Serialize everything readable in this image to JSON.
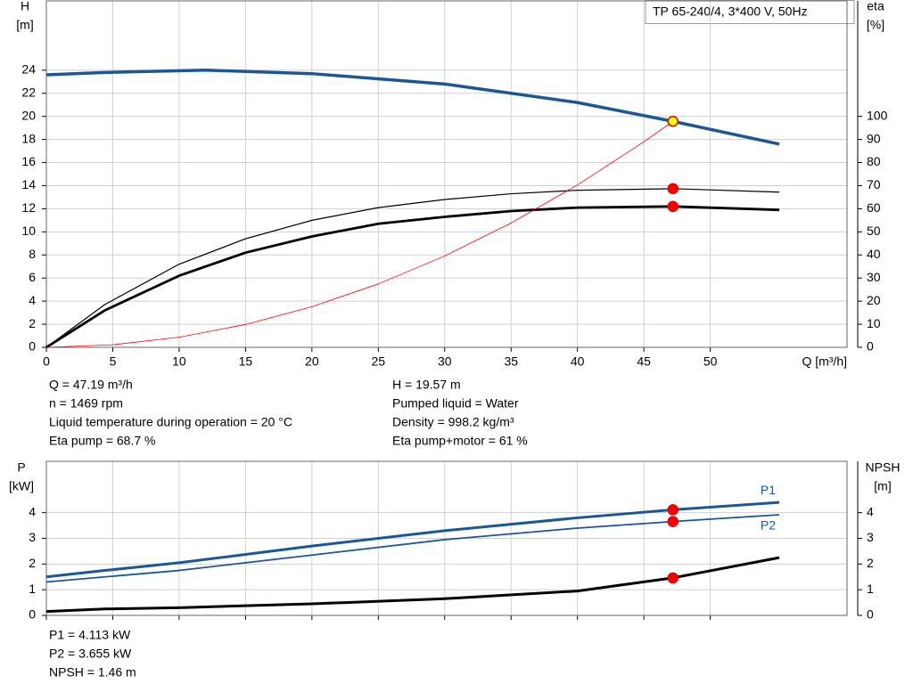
{
  "chart_data": [
    {
      "type": "line",
      "annotation": "TP 65-240/4, 3*400 V, 50Hz",
      "y_label": "H",
      "y_unit": "[m]",
      "y2_label": "eta",
      "y2_unit": "[%]",
      "x_label": "Q [m³/h]",
      "xlim": [
        0,
        60.3
      ],
      "xticks": [
        0,
        5,
        10,
        15,
        20,
        25,
        30,
        35,
        40,
        45,
        50
      ],
      "ylim": [
        0,
        30
      ],
      "yticks": [
        0,
        2,
        4,
        6,
        8,
        10,
        12,
        14,
        16,
        18,
        20,
        22,
        24
      ],
      "y2lim": [
        0,
        150
      ],
      "y2ticks": [
        0,
        10,
        20,
        30,
        40,
        50,
        60,
        70,
        80,
        90,
        100
      ],
      "grid": true,
      "series": [
        {
          "color": "#1b5797",
          "x": [
            0,
            4.4,
            12,
            20,
            30,
            40,
            47.19,
            55.2
          ],
          "values": [
            23.6,
            23.8,
            24.0,
            23.7,
            22.8,
            21.2,
            19.57,
            17.6
          ]
        },
        {
          "color": "#000000",
          "axis": "y2",
          "x": [
            0,
            4.4,
            10,
            15,
            20,
            25,
            30,
            35,
            40,
            47.19,
            55.2
          ],
          "values": [
            0,
            18.5,
            36,
            47,
            55,
            60.5,
            64,
            66.5,
            68,
            68.7,
            67.2
          ]
        },
        {
          "color": "#000000",
          "axis": "y2",
          "x": [
            0,
            4.4,
            10,
            15,
            20,
            25,
            30,
            35,
            40,
            47.19,
            55.2
          ],
          "values": [
            0,
            16,
            31,
            41,
            48,
            53.5,
            56.5,
            59,
            60.5,
            61,
            59.5
          ]
        },
        {
          "color": "#ff0000",
          "x": [
            0,
            5,
            10,
            15,
            20,
            25,
            30,
            35,
            40,
            45,
            47.19
          ],
          "values": [
            0,
            0.22,
            0.88,
            1.98,
            3.52,
            5.49,
            7.91,
            10.77,
            14.06,
            17.8,
            19.57
          ]
        }
      ],
      "markers": [
        {
          "x": 47.19,
          "y": 68.7,
          "axis": "y2",
          "color": "#ff0000"
        },
        {
          "x": 47.19,
          "y": 61,
          "axis": "y2",
          "color": "#ff0000"
        },
        {
          "x": 47.19,
          "y": 19.57,
          "axis": "y",
          "color": "#ffff00"
        }
      ]
    },
    {
      "type": "line",
      "y_label": "P",
      "y_unit": "[kW]",
      "y2_label": "NPSH",
      "y2_unit": "[m]",
      "xlim": [
        0,
        60.3
      ],
      "ylim": [
        0,
        6
      ],
      "yticks": [
        0,
        1,
        2,
        3,
        4
      ],
      "y2lim": [
        0,
        6
      ],
      "y2ticks": [
        0,
        1,
        2,
        3,
        4
      ],
      "grid": true,
      "series": [
        {
          "name": "P1",
          "color": "#1b5797",
          "x": [
            0,
            4.4,
            10,
            20,
            30,
            40,
            47.19,
            55.2
          ],
          "values": [
            1.5,
            1.75,
            2.05,
            2.7,
            3.3,
            3.8,
            4.113,
            4.4
          ]
        },
        {
          "name": "P2",
          "color": "#1b5797",
          "x": [
            0,
            4.4,
            10,
            20,
            30,
            40,
            47.19,
            55.2
          ],
          "values": [
            1.3,
            1.5,
            1.75,
            2.35,
            2.95,
            3.4,
            3.655,
            3.92
          ]
        },
        {
          "color": "#000000",
          "axis": "y2",
          "x": [
            0,
            4.4,
            10,
            20,
            30,
            40,
            47.19,
            55.2
          ],
          "values": [
            0.15,
            0.25,
            0.3,
            0.45,
            0.65,
            0.95,
            1.46,
            2.25
          ]
        }
      ],
      "markers": [
        {
          "x": 47.19,
          "y": 4.113,
          "axis": "y",
          "color": "#ff0000"
        },
        {
          "x": 47.19,
          "y": 3.655,
          "axis": "y",
          "color": "#ff0000"
        },
        {
          "x": 47.19,
          "y": 1.46,
          "axis": "y2",
          "color": "#ff0000"
        }
      ]
    }
  ],
  "readout": {
    "top_left": [
      "Q = 47.19 m³/h",
      "n = 1469 rpm",
      "Liquid temperature during operation = 20 °C",
      "Eta pump = 68.7 %"
    ],
    "top_right": [
      "H = 19.57 m",
      "Pumped liquid = Water",
      "Density = 998.2 kg/m³",
      "Eta pump+motor = 61 %"
    ],
    "bottom": [
      "P1 = 4.113 kW",
      "P2 = 3.655 kW",
      "NPSH = 1.46 m"
    ]
  }
}
